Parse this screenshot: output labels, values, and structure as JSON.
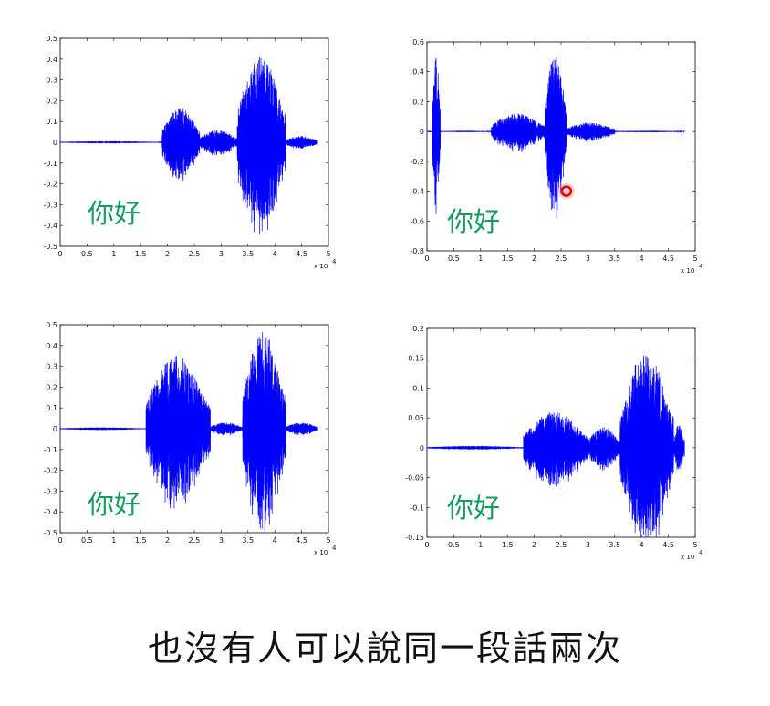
{
  "caption": "也沒有人可以說同一段話兩次",
  "colors": {
    "waveform": "#0000ff",
    "label": "#159c5e",
    "cursor": "#e00000"
  },
  "chart_data": [
    {
      "type": "line",
      "label": "你好",
      "xlim": [
        0,
        5
      ],
      "ylim": [
        -0.5,
        0.5
      ],
      "xticks": [
        "0",
        "0.5",
        "1",
        "1.5",
        "2",
        "2.5",
        "3",
        "3.5",
        "4",
        "4.5",
        "5"
      ],
      "yticks": [
        "0.5",
        "0.4",
        "0.3",
        "0.2",
        "0.1",
        "0",
        "-0.1",
        "-0.2",
        "-0.3",
        "-0.4",
        "-0.5"
      ],
      "x_exponent": "x 10",
      "x_exponent_power": "4",
      "segments": [
        {
          "x": [
            0.0,
            1.9
          ],
          "amp": 0.005
        },
        {
          "x": [
            1.9,
            2.6
          ],
          "amp": 0.17
        },
        {
          "x": [
            2.6,
            3.3
          ],
          "amp": 0.06
        },
        {
          "x": [
            3.3,
            4.2
          ],
          "amp": 0.42
        },
        {
          "x": [
            4.2,
            4.8
          ],
          "amp": 0.03
        }
      ]
    },
    {
      "type": "line",
      "label": "你好",
      "xlim": [
        0,
        5
      ],
      "ylim": [
        -0.8,
        0.6
      ],
      "xticks": [
        "0",
        "0.5",
        "1",
        "1.5",
        "2",
        "2.5",
        "3",
        "3.5",
        "4",
        "4.5",
        "5"
      ],
      "yticks": [
        "0.6",
        "0.4",
        "0.2",
        "0",
        "-0.2",
        "-0.4",
        "-0.6",
        "-0.8"
      ],
      "x_exponent": "x 10",
      "x_exponent_power": "4",
      "segments": [
        {
          "x": [
            0.0,
            0.1
          ],
          "amp": 0.005
        },
        {
          "x": [
            0.1,
            0.25
          ],
          "amp": 0.5
        },
        {
          "x": [
            0.25,
            1.2
          ],
          "amp": 0.005
        },
        {
          "x": [
            1.2,
            2.2
          ],
          "amp": 0.12
        },
        {
          "x": [
            2.2,
            2.6
          ],
          "amp": 0.52
        },
        {
          "x": [
            2.6,
            3.5
          ],
          "amp": 0.06
        },
        {
          "x": [
            3.5,
            4.8
          ],
          "amp": 0.005
        }
      ],
      "cursor_marker": {
        "x": 2.6,
        "y": -0.4
      }
    },
    {
      "type": "line",
      "label": "你好",
      "xlim": [
        0,
        5
      ],
      "ylim": [
        -0.5,
        0.5
      ],
      "xticks": [
        "0",
        "0.5",
        "1",
        "1.5",
        "2",
        "2.5",
        "3",
        "3.5",
        "4",
        "4.5",
        "5"
      ],
      "yticks": [
        "0.5",
        "0.4",
        "0.3",
        "0.2",
        "0.1",
        "0",
        "-0.1",
        "-0.2",
        "-0.3",
        "-0.4",
        "-0.5"
      ],
      "x_exponent": "x 10",
      "x_exponent_power": "4",
      "segments": [
        {
          "x": [
            0.0,
            1.6
          ],
          "amp": 0.006
        },
        {
          "x": [
            1.6,
            2.8
          ],
          "amp": 0.35
        },
        {
          "x": [
            2.8,
            3.4
          ],
          "amp": 0.03
        },
        {
          "x": [
            3.4,
            4.2
          ],
          "amp": 0.47
        },
        {
          "x": [
            4.2,
            4.8
          ],
          "amp": 0.03
        }
      ]
    },
    {
      "type": "line",
      "label": "你好",
      "xlim": [
        0,
        5
      ],
      "ylim": [
        -0.15,
        0.2
      ],
      "xticks": [
        "0",
        "0.5",
        "1",
        "1.5",
        "2",
        "2.5",
        "3",
        "3.5",
        "4",
        "4.5",
        "5"
      ],
      "yticks": [
        "0.2",
        "0.15",
        "0.1",
        "0.05",
        "0",
        "-0.05",
        "-0.1",
        "-0.15"
      ],
      "x_exponent": "x 10",
      "x_exponent_power": "4",
      "segments": [
        {
          "x": [
            0.0,
            1.8
          ],
          "amp": 0.003
        },
        {
          "x": [
            1.8,
            3.0
          ],
          "amp": 0.06
        },
        {
          "x": [
            3.0,
            3.6
          ],
          "amp": 0.035
        },
        {
          "x": [
            3.6,
            4.6
          ],
          "amp": 0.16
        },
        {
          "x": [
            4.6,
            4.8
          ],
          "amp": 0.04
        }
      ]
    }
  ]
}
